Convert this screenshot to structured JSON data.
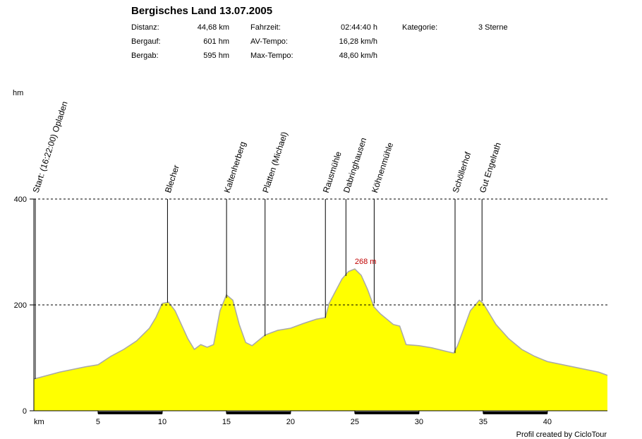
{
  "chart_data": {
    "type": "area",
    "title": "Bergisches Land 13.07.2005",
    "stats": [
      [
        {
          "label": "Distanz:",
          "value": "44,68 km"
        },
        {
          "label": "Bergauf:",
          "value": "601 hm"
        },
        {
          "label": "Bergab:",
          "value": "595 hm"
        }
      ],
      [
        {
          "label": "Fahrzeit:",
          "value": "02:44:40 h"
        },
        {
          "label": "AV-Tempo:",
          "value": "16,28 km/h"
        },
        {
          "label": "Max-Tempo:",
          "value": "48,60 km/h"
        }
      ],
      [
        {
          "label": "Kategorie:",
          "value": "3 Sterne"
        }
      ]
    ],
    "y_label": "hm",
    "x_label": "km",
    "footer": "Profil created by CicloTour",
    "color": "#ffff00",
    "line_color": "#a8a8a8",
    "grid": true,
    "xlim": [
      0,
      44.68
    ],
    "ylim": [
      0,
      400
    ],
    "xticks": [
      5,
      10,
      15,
      20,
      25,
      30,
      35,
      40
    ],
    "yticks": [
      0,
      200,
      400
    ],
    "x": [
      0,
      2,
      4,
      5,
      6,
      7,
      8,
      9,
      9.5,
      10,
      10.5,
      11,
      12,
      12.5,
      13,
      13.5,
      14,
      14.5,
      15,
      15.5,
      16,
      16.5,
      17,
      18,
      19,
      20,
      21,
      22,
      22.7,
      23,
      24,
      24.5,
      25,
      25.5,
      26,
      26.5,
      27,
      28,
      28.5,
      29,
      30,
      31,
      32,
      32.7,
      33,
      34,
      34.7,
      35,
      36,
      37,
      38,
      39,
      40,
      42,
      44,
      44.68
    ],
    "values": [
      60,
      73,
      83,
      87,
      103,
      116,
      132,
      156,
      176,
      203,
      205,
      189,
      136,
      116,
      125,
      120,
      125,
      189,
      219,
      209,
      163,
      129,
      123,
      143,
      152,
      156,
      165,
      173,
      176,
      203,
      249,
      263,
      268,
      256,
      229,
      196,
      183,
      163,
      160,
      125,
      123,
      119,
      113,
      109,
      123,
      189,
      209,
      203,
      163,
      136,
      116,
      103,
      93,
      83,
      73,
      67
    ],
    "waypoints": [
      {
        "name": "Start: (16:22:00) Opladen",
        "km": 0
      },
      {
        "name": "Blecher",
        "km": 10.3
      },
      {
        "name": "Kaltenherberg",
        "km": 14.9
      },
      {
        "name": "Platten (Michael)",
        "km": 17.9
      },
      {
        "name": "Rausmühle",
        "km": 22.6
      },
      {
        "name": "Dabringhausen",
        "km": 24.2
      },
      {
        "name": "Köhnenmühle",
        "km": 26.4
      },
      {
        "name": "Schöllerhof",
        "km": 32.7
      },
      {
        "name": "Gut Engelrath",
        "km": 34.8
      }
    ],
    "annotations": [
      {
        "x": 25,
        "y": 268,
        "text": "268 m"
      }
    ]
  }
}
